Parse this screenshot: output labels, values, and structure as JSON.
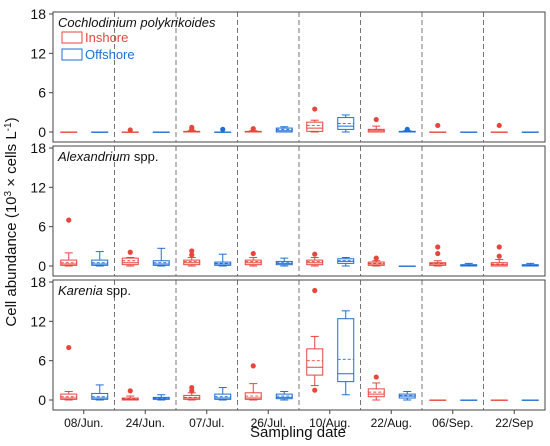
{
  "chart_data": {
    "type": "boxplot",
    "xlabel": "Sampling date",
    "ylabel": "Cell abundance (10³ × cells L⁻¹)",
    "ylabel_parts": {
      "main": "Cell abundance (10",
      "sup1": "3",
      "mid": " × cells L",
      "sup2": "-1",
      "end": ")"
    },
    "categories": [
      "08/Jun.",
      "24/Jun.",
      "07/Jul.",
      "26/Jul.",
      "10/Aug.",
      "22/Aug.",
      "06/Sep.",
      "22/Sep"
    ],
    "ylim": [
      0,
      18
    ],
    "yticks": [
      "0",
      "6",
      "12",
      "18"
    ],
    "legend": {
      "position": "top-left",
      "entries": [
        "Inshore",
        "Offshore"
      ]
    },
    "colors": {
      "Inshore": "#e8453c",
      "Offshore": "#1f6fd6"
    },
    "panels": [
      {
        "title_italic": "Cochlodinium polykrikoides",
        "title_normal": "",
        "series": [
          {
            "name": "Inshore",
            "boxes": [
              {
                "min": 0,
                "q1": 0,
                "median": 0,
                "q3": 0,
                "max": 0,
                "mean": 0,
                "outliers": []
              },
              {
                "min": 0,
                "q1": 0,
                "median": 0,
                "q3": 0,
                "max": 0,
                "mean": 0,
                "outliers": [
                  0.3
                ]
              },
              {
                "min": 0,
                "q1": 0,
                "median": 0,
                "q3": 0.1,
                "max": 0.2,
                "mean": 0.05,
                "outliers": [
                  0.4,
                  0.7
                ]
              },
              {
                "min": 0,
                "q1": 0,
                "median": 0,
                "q3": 0.1,
                "max": 0.2,
                "mean": 0.05,
                "outliers": [
                  0.5
                ]
              },
              {
                "min": 0,
                "q1": 0.1,
                "median": 0.6,
                "q3": 1.5,
                "max": 1.8,
                "mean": 1.0,
                "outliers": [
                  3.5
                ]
              },
              {
                "min": 0,
                "q1": 0,
                "median": 0.2,
                "q3": 0.4,
                "max": 0.9,
                "mean": 0.4,
                "outliers": [
                  1.9
                ]
              },
              {
                "min": 0,
                "q1": 0,
                "median": 0,
                "q3": 0,
                "max": 0,
                "mean": 0,
                "outliers": [
                  1.0
                ]
              },
              {
                "min": 0,
                "q1": 0,
                "median": 0,
                "q3": 0,
                "max": 0,
                "mean": 0,
                "outliers": [
                  1.0
                ]
              }
            ]
          },
          {
            "name": "Offshore",
            "boxes": [
              {
                "min": 0,
                "q1": 0,
                "median": 0,
                "q3": 0,
                "max": 0,
                "mean": 0,
                "outliers": []
              },
              {
                "min": 0,
                "q1": 0,
                "median": 0,
                "q3": 0,
                "max": 0,
                "mean": 0,
                "outliers": []
              },
              {
                "min": 0,
                "q1": 0,
                "median": 0,
                "q3": 0,
                "max": 0,
                "mean": 0,
                "outliers": [
                  0.4
                ]
              },
              {
                "min": 0,
                "q1": 0,
                "median": 0.2,
                "q3": 0.6,
                "max": 0.8,
                "mean": 0.4,
                "outliers": []
              },
              {
                "min": 0,
                "q1": 0.4,
                "median": 0.9,
                "q3": 2.2,
                "max": 2.6,
                "mean": 1.3,
                "outliers": []
              },
              {
                "min": 0,
                "q1": 0,
                "median": 0,
                "q3": 0.1,
                "max": 0.2,
                "mean": 0.05,
                "outliers": [
                  0.4
                ]
              },
              {
                "min": 0,
                "q1": 0,
                "median": 0,
                "q3": 0,
                "max": 0,
                "mean": 0,
                "outliers": []
              },
              {
                "min": 0,
                "q1": 0,
                "median": 0,
                "q3": 0,
                "max": 0,
                "mean": 0,
                "outliers": []
              }
            ]
          }
        ]
      },
      {
        "title_italic": "Alexandrium",
        "title_normal": " spp.",
        "series": [
          {
            "name": "Inshore",
            "boxes": [
              {
                "min": 0,
                "q1": 0.1,
                "median": 0.3,
                "q3": 0.9,
                "max": 2.0,
                "mean": 0.5,
                "outliers": [
                  7.0
                ]
              },
              {
                "min": 0,
                "q1": 0.2,
                "median": 0.5,
                "q3": 1.2,
                "max": 1.3,
                "mean": 0.8,
                "outliers": [
                  2.1
                ]
              },
              {
                "min": 0,
                "q1": 0.2,
                "median": 0.5,
                "q3": 0.9,
                "max": 1.3,
                "mean": 0.7,
                "outliers": [
                  1.7,
                  2.3
                ]
              },
              {
                "min": 0,
                "q1": 0.2,
                "median": 0.5,
                "q3": 0.9,
                "max": 1.3,
                "mean": 0.7,
                "outliers": [
                  1.9
                ]
              },
              {
                "min": 0,
                "q1": 0.2,
                "median": 0.5,
                "q3": 0.9,
                "max": 1.3,
                "mean": 0.7,
                "outliers": [
                  1.8
                ]
              },
              {
                "min": 0,
                "q1": 0.1,
                "median": 0.3,
                "q3": 0.6,
                "max": 0.8,
                "mean": 0.4,
                "outliers": [
                  1.2
                ]
              },
              {
                "min": 0,
                "q1": 0.1,
                "median": 0.3,
                "q3": 0.5,
                "max": 0.8,
                "mean": 0.4,
                "outliers": [
                  1.9,
                  2.9
                ]
              },
              {
                "min": 0,
                "q1": 0,
                "median": 0.2,
                "q3": 0.5,
                "max": 1.0,
                "mean": 0.3,
                "outliers": [
                  1.5,
                  2.9
                ]
              }
            ]
          },
          {
            "name": "Offshore",
            "boxes": [
              {
                "min": 0,
                "q1": 0.1,
                "median": 0.3,
                "q3": 0.9,
                "max": 2.2,
                "mean": 0.5,
                "outliers": []
              },
              {
                "min": 0,
                "q1": 0.1,
                "median": 0.3,
                "q3": 0.8,
                "max": 2.7,
                "mean": 0.5,
                "outliers": []
              },
              {
                "min": 0,
                "q1": 0.1,
                "median": 0.3,
                "q3": 0.6,
                "max": 1.8,
                "mean": 0.4,
                "outliers": []
              },
              {
                "min": 0,
                "q1": 0.2,
                "median": 0.4,
                "q3": 0.7,
                "max": 1.2,
                "mean": 0.5,
                "outliers": []
              },
              {
                "min": 0,
                "q1": 0.4,
                "median": 0.7,
                "q3": 1.1,
                "max": 1.3,
                "mean": 0.8,
                "outliers": []
              },
              {
                "min": 0,
                "q1": 0,
                "median": 0,
                "q3": 0,
                "max": 0,
                "mean": 0,
                "outliers": []
              },
              {
                "min": 0,
                "q1": 0,
                "median": 0.1,
                "q3": 0.2,
                "max": 0.4,
                "mean": 0.1,
                "outliers": []
              },
              {
                "min": 0,
                "q1": 0,
                "median": 0.1,
                "q3": 0.2,
                "max": 0.4,
                "mean": 0.1,
                "outliers": []
              }
            ]
          }
        ]
      },
      {
        "title_italic": "Karenia",
        "title_normal": " spp.",
        "series": [
          {
            "name": "Inshore",
            "boxes": [
              {
                "min": 0,
                "q1": 0.1,
                "median": 0.3,
                "q3": 0.9,
                "max": 1.3,
                "mean": 0.5,
                "outliers": [
                  8.0
                ]
              },
              {
                "min": 0,
                "q1": 0,
                "median": 0.1,
                "q3": 0.3,
                "max": 0.6,
                "mean": 0.2,
                "outliers": [
                  1.4
                ]
              },
              {
                "min": 0,
                "q1": 0.1,
                "median": 0.3,
                "q3": 0.7,
                "max": 1.1,
                "mean": 0.4,
                "outliers": [
                  1.4,
                  1.9
                ]
              },
              {
                "min": 0,
                "q1": 0.1,
                "median": 0.3,
                "q3": 1.1,
                "max": 2.5,
                "mean": 0.6,
                "outliers": [
                  5.2
                ]
              },
              {
                "min": 2.2,
                "q1": 3.8,
                "median": 5.0,
                "q3": 7.8,
                "max": 9.7,
                "mean": 6.0,
                "outliers": [
                  1.5,
                  16.7
                ]
              },
              {
                "min": 0,
                "q1": 0.5,
                "median": 0.9,
                "q3": 1.7,
                "max": 2.6,
                "mean": 1.2,
                "outliers": [
                  3.5
                ]
              },
              {
                "min": 0,
                "q1": 0,
                "median": 0,
                "q3": 0,
                "max": 0,
                "mean": 0,
                "outliers": []
              },
              {
                "min": 0,
                "q1": 0,
                "median": 0,
                "q3": 0,
                "max": 0,
                "mean": 0,
                "outliers": []
              }
            ]
          },
          {
            "name": "Offshore",
            "boxes": [
              {
                "min": 0,
                "q1": 0.1,
                "median": 0.3,
                "q3": 1.0,
                "max": 2.3,
                "mean": 0.5,
                "outliers": []
              },
              {
                "min": 0,
                "q1": 0.1,
                "median": 0.2,
                "q3": 0.4,
                "max": 0.8,
                "mean": 0.3,
                "outliers": []
              },
              {
                "min": 0,
                "q1": 0.1,
                "median": 0.3,
                "q3": 0.9,
                "max": 1.9,
                "mean": 0.5,
                "outliers": []
              },
              {
                "min": 0,
                "q1": 0.2,
                "median": 0.4,
                "q3": 0.9,
                "max": 1.3,
                "mean": 0.6,
                "outliers": []
              },
              {
                "min": 0.8,
                "q1": 2.8,
                "median": 4.0,
                "q3": 12.4,
                "max": 13.6,
                "mean": 6.2,
                "outliers": []
              },
              {
                "min": 0,
                "q1": 0.3,
                "median": 0.6,
                "q3": 0.9,
                "max": 1.3,
                "mean": 0.7,
                "outliers": []
              },
              {
                "min": 0,
                "q1": 0,
                "median": 0,
                "q3": 0,
                "max": 0,
                "mean": 0,
                "outliers": []
              },
              {
                "min": 0,
                "q1": 0,
                "median": 0,
                "q3": 0,
                "max": 0,
                "mean": 0,
                "outliers": []
              }
            ]
          }
        ]
      }
    ]
  }
}
